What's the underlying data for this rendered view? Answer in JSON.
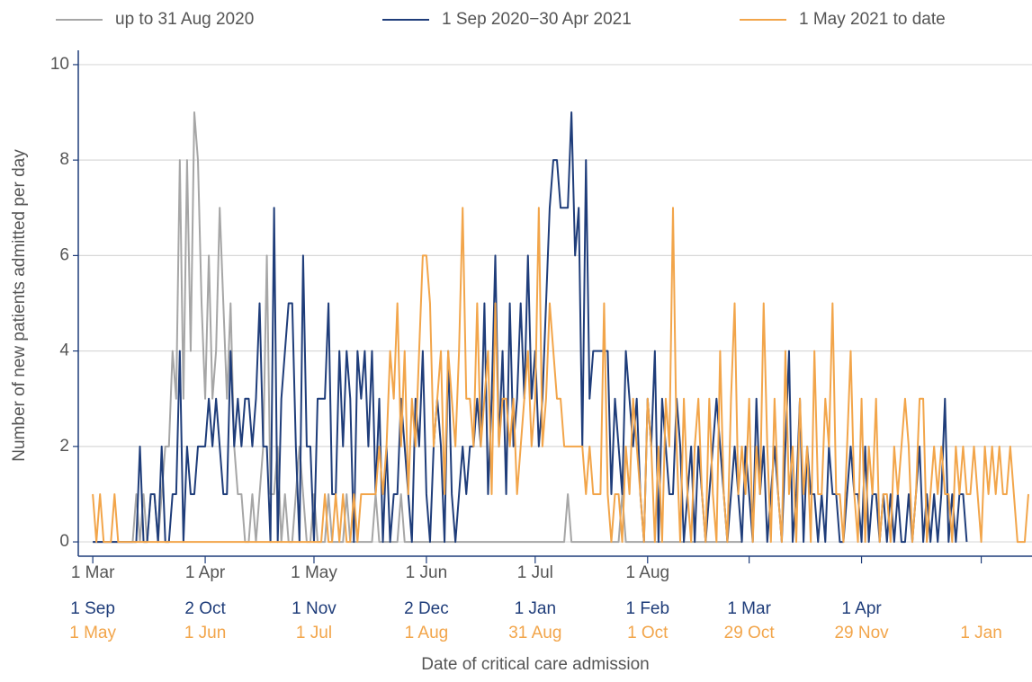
{
  "chart_data": {
    "type": "line",
    "y_label": "Number of new patients admitted per day",
    "x_label": "Date of critical care admission",
    "xlim": [
      -4,
      259
    ],
    "ylim": [
      -0.3,
      10.3
    ],
    "yticks": [
      0,
      2,
      4,
      6,
      8,
      10
    ],
    "grid": true,
    "legend": "top",
    "xticks": [
      {
        "value": 0,
        "label": "1 Mar"
      },
      {
        "value": 31,
        "label": "1 Apr"
      },
      {
        "value": 61,
        "label": "1 May"
      },
      {
        "value": 92,
        "label": "1 Jun"
      },
      {
        "value": 122,
        "label": "1 Jul"
      },
      {
        "value": 153,
        "label": "1 Aug"
      }
    ],
    "xticks_2": [
      {
        "value": 0,
        "label": "1 Sep"
      },
      {
        "value": 31,
        "label": "2 Oct"
      },
      {
        "value": 61,
        "label": "1 Nov"
      },
      {
        "value": 92,
        "label": "2 Dec"
      },
      {
        "value": 122,
        "label": "1 Jan"
      },
      {
        "value": 153,
        "label": "1 Feb"
      },
      {
        "value": 181,
        "label": "1 Mar"
      },
      {
        "value": 212,
        "label": "1 Apr"
      }
    ],
    "xticks_3": [
      {
        "value": 0,
        "label": "1 May"
      },
      {
        "value": 31,
        "label": "1 Jun"
      },
      {
        "value": 61,
        "label": "1 Jul"
      },
      {
        "value": 92,
        "label": "1 Aug"
      },
      {
        "value": 122,
        "label": "31 Aug"
      },
      {
        "value": 153,
        "label": "1 Oct"
      },
      {
        "value": 181,
        "label": "29 Oct"
      },
      {
        "value": 212,
        "label": "29 Nov"
      },
      {
        "value": 245,
        "label": "1 Jan"
      }
    ],
    "series": [
      {
        "name": "up to 31 Aug 2020",
        "color": "#a6a6a6",
        "values": [
          0,
          0,
          0,
          0,
          0,
          0,
          0,
          0,
          0,
          0,
          0,
          0,
          1,
          0,
          1,
          0,
          1,
          1,
          0,
          1,
          2,
          2,
          4,
          3,
          8,
          3,
          8,
          4,
          9,
          8,
          5,
          3,
          6,
          3,
          4,
          7,
          5,
          3,
          5,
          2,
          1,
          1,
          0,
          0,
          1,
          0,
          1,
          2,
          6,
          1,
          1,
          2,
          0,
          1,
          0,
          0,
          1,
          2,
          1,
          0,
          0,
          1,
          0,
          0,
          0,
          1,
          0,
          0,
          0,
          0,
          1,
          0,
          0,
          0,
          0,
          0,
          0,
          0,
          1,
          0,
          0,
          0,
          0,
          0,
          0,
          1,
          0,
          0,
          0,
          0,
          0,
          0,
          0,
          0,
          0,
          0,
          0,
          0,
          0,
          0,
          0,
          0,
          0,
          0,
          0,
          0,
          0,
          0,
          0,
          0,
          0,
          0,
          0,
          0,
          0,
          0,
          0,
          0,
          0,
          0,
          0,
          0,
          0,
          0,
          0,
          0,
          0,
          0,
          0,
          0,
          0,
          1,
          0,
          0,
          0,
          0,
          0,
          0,
          0,
          0,
          0,
          0,
          0,
          0,
          0,
          0,
          1,
          0,
          0,
          0,
          0,
          0,
          0,
          0,
          0,
          0,
          0,
          0,
          0,
          0,
          0,
          0,
          0,
          0,
          0,
          0,
          0,
          0,
          0,
          0,
          0,
          0,
          0,
          0,
          0,
          0,
          0,
          0,
          0,
          0
        ]
      },
      {
        "name": "1 Sep 2020−30 Apr 2021",
        "color": "#1f3d7a",
        "values": [
          0,
          0,
          0,
          0,
          0,
          0,
          0,
          0,
          0,
          0,
          0,
          0,
          0,
          2,
          0,
          0,
          1,
          1,
          0,
          2,
          0,
          0,
          1,
          1,
          4,
          0,
          2,
          1,
          1,
          2,
          2,
          2,
          3,
          2,
          3,
          2,
          1,
          1,
          4,
          2,
          3,
          2,
          3,
          3,
          2,
          3,
          5,
          2,
          2,
          0,
          7,
          0,
          3,
          4,
          5,
          5,
          2,
          0,
          6,
          2,
          2,
          0,
          3,
          3,
          3,
          5,
          1,
          1,
          4,
          2,
          4,
          3,
          0,
          4,
          3,
          4,
          2,
          4,
          1,
          3,
          0,
          2,
          0,
          1,
          1,
          3,
          2,
          1,
          0,
          3,
          2,
          4,
          1,
          0,
          2,
          3,
          2,
          0,
          4,
          1,
          0,
          1,
          2,
          1,
          2,
          2,
          3,
          2,
          5,
          1,
          3,
          6,
          2,
          4,
          1,
          5,
          2,
          3,
          5,
          3,
          6,
          3,
          4,
          2,
          3,
          5,
          7,
          8,
          8,
          7,
          7,
          7,
          9,
          6,
          7,
          2,
          8,
          3,
          4,
          4,
          4,
          4,
          4,
          1,
          3,
          2,
          1,
          4,
          3,
          2,
          3,
          1,
          0,
          3,
          2,
          4,
          0,
          3,
          2,
          1,
          1,
          3,
          2,
          0,
          1,
          2,
          0,
          2,
          1,
          0,
          1,
          2,
          3,
          2,
          1,
          0,
          1,
          2,
          1,
          0,
          2,
          1,
          0,
          3,
          1,
          2,
          0,
          1,
          2,
          1,
          0,
          2,
          4,
          0,
          1,
          3,
          0,
          2,
          1,
          1,
          0,
          1,
          0,
          2,
          1,
          1,
          0,
          0,
          1,
          2,
          1,
          1,
          0,
          2,
          0,
          1,
          1,
          0,
          1,
          0,
          1,
          0,
          1,
          0,
          0,
          1,
          0,
          1,
          2,
          0,
          1,
          0,
          1,
          0,
          1,
          3,
          0,
          1,
          0,
          1,
          1,
          0
        ]
      },
      {
        "name": "1 May 2021 to date",
        "color": "#f2a54a",
        "values": [
          1,
          0,
          1,
          0,
          0,
          0,
          1,
          0,
          0,
          0,
          0,
          0,
          0,
          0,
          0,
          0,
          0,
          0,
          0,
          0,
          0,
          0,
          0,
          0,
          0,
          0,
          0,
          0,
          0,
          0,
          0,
          0,
          0,
          0,
          0,
          0,
          0,
          0,
          0,
          0,
          0,
          0,
          0,
          0,
          0,
          0,
          0,
          0,
          0,
          0,
          0,
          0,
          0,
          0,
          0,
          0,
          0,
          0,
          0,
          0,
          0,
          0,
          0,
          0,
          1,
          0,
          0,
          1,
          0,
          1,
          0,
          0,
          1,
          0,
          1,
          1,
          1,
          1,
          1,
          2,
          1,
          2,
          4,
          3,
          5,
          2,
          4,
          1,
          3,
          2,
          4,
          6,
          6,
          5,
          2,
          3,
          4,
          1,
          4,
          3,
          2,
          4,
          7,
          3,
          3,
          2,
          5,
          2,
          3,
          4,
          1,
          5,
          2,
          3,
          3,
          2,
          3,
          1,
          2,
          3,
          4,
          2,
          3,
          7,
          2,
          3,
          5,
          4,
          3,
          3,
          2,
          2,
          2,
          2,
          2,
          2,
          1,
          2,
          1,
          1,
          1,
          5,
          1,
          0,
          1,
          1,
          0,
          2,
          1,
          3,
          2,
          1,
          0,
          3,
          2,
          0,
          2,
          0,
          3,
          2,
          7,
          2,
          0,
          3,
          1,
          0,
          2,
          3,
          1,
          0,
          3,
          1,
          0,
          4,
          1,
          0,
          3,
          5,
          1,
          2,
          1,
          3,
          0,
          2,
          1,
          5,
          2,
          0,
          3,
          1,
          0,
          4,
          1,
          2,
          0,
          3,
          1,
          2,
          0,
          4,
          1,
          1,
          3,
          2,
          5,
          1,
          1,
          0,
          2,
          4,
          1,
          0,
          3,
          0,
          2,
          1,
          3,
          0,
          1,
          1,
          0,
          2,
          1,
          2,
          3,
          2,
          0,
          1,
          3,
          3,
          0,
          1,
          2,
          1,
          2,
          1,
          1,
          0,
          2,
          1,
          2,
          1,
          1,
          2,
          1,
          0,
          2,
          1,
          2,
          1,
          2,
          1,
          1,
          2,
          1,
          0,
          0,
          0,
          1
        ]
      }
    ]
  }
}
